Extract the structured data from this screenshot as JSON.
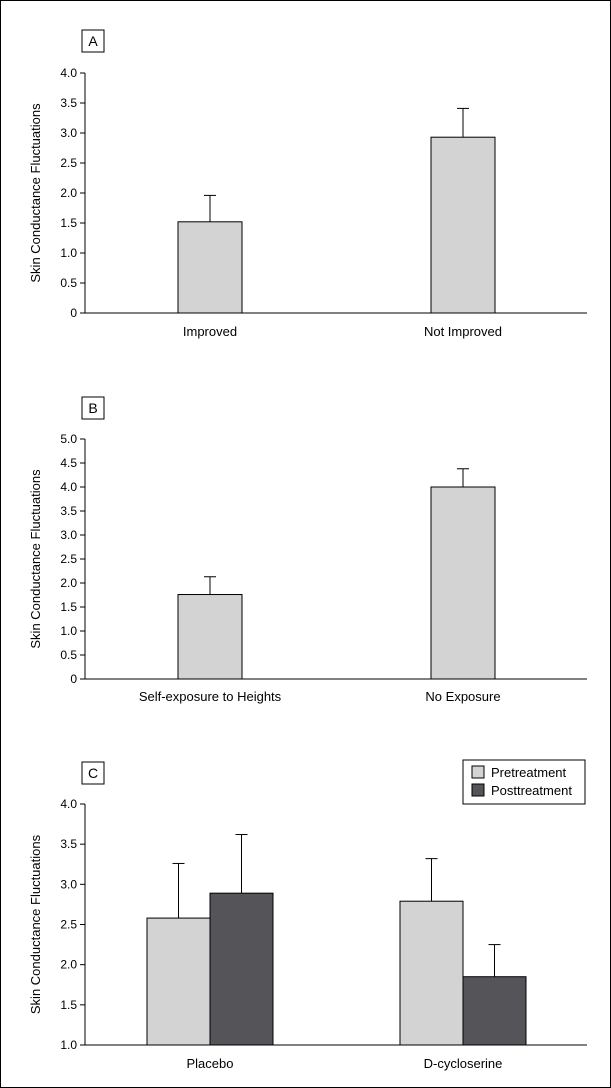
{
  "chart_data": [
    {
      "panel": "A",
      "type": "bar",
      "categories": [
        "Improved",
        "Not Improved"
      ],
      "series": [
        {
          "values": [
            1.52,
            2.93
          ],
          "errors": [
            0.44,
            0.48
          ],
          "color": "#d3d3d3"
        }
      ],
      "ylabel": "Skin Conductance Fluctuations",
      "ylim": [
        0,
        4.0
      ],
      "yticks": [
        "0",
        "0.5",
        "1.0",
        "1.5",
        "2.0",
        "2.5",
        "3.0",
        "3.5",
        "4.0"
      ],
      "grid": false
    },
    {
      "panel": "B",
      "type": "bar",
      "categories": [
        "Self-exposure to Heights",
        "No Exposure"
      ],
      "series": [
        {
          "values": [
            1.76,
            4.0
          ],
          "errors": [
            0.37,
            0.38
          ],
          "color": "#d3d3d3"
        }
      ],
      "ylabel": "Skin Conductance Fluctuations",
      "ylim": [
        0,
        5.0
      ],
      "yticks": [
        "0",
        "0.5",
        "1.0",
        "1.5",
        "2.0",
        "2.5",
        "3.0",
        "3.5",
        "4.0",
        "4.5",
        "5.0"
      ],
      "grid": false
    },
    {
      "panel": "C",
      "type": "bar",
      "categories": [
        "Placebo",
        "D-cycloserine"
      ],
      "series": [
        {
          "name": "Pretreatment",
          "values": [
            2.58,
            2.79
          ],
          "errors": [
            0.68,
            0.53
          ],
          "color": "#d3d3d3"
        },
        {
          "name": "Posttreatment",
          "values": [
            2.89,
            1.85
          ],
          "errors": [
            0.73,
            0.4
          ],
          "color": "#555559"
        }
      ],
      "ylabel": "Skin Conductance Fluctuations",
      "ylim": [
        1.0,
        4.0
      ],
      "yticks": [
        "1.0",
        "1.5",
        "2.0",
        "2.5",
        "3.0",
        "3.5",
        "4.0"
      ],
      "legend": "top-right",
      "grid": false
    }
  ]
}
